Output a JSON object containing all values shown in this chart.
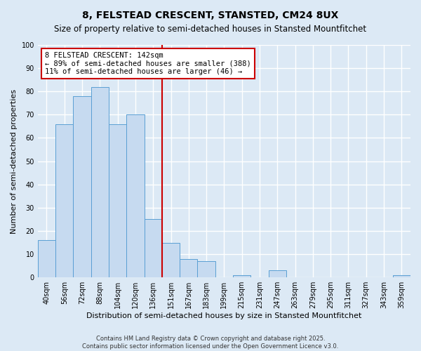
{
  "title": "8, FELSTEAD CRESCENT, STANSTED, CM24 8UX",
  "subtitle": "Size of property relative to semi-detached houses in Stansted Mountfitchet",
  "xlabel": "Distribution of semi-detached houses by size in Stansted Mountfitchet",
  "ylabel": "Number of semi-detached properties",
  "bin_labels": [
    "40sqm",
    "56sqm",
    "72sqm",
    "88sqm",
    "104sqm",
    "120sqm",
    "136sqm",
    "151sqm",
    "167sqm",
    "183sqm",
    "199sqm",
    "215sqm",
    "231sqm",
    "247sqm",
    "263sqm",
    "279sqm",
    "295sqm",
    "311sqm",
    "327sqm",
    "343sqm",
    "359sqm"
  ],
  "bar_values": [
    16,
    66,
    78,
    82,
    66,
    70,
    25,
    15,
    8,
    7,
    0,
    1,
    0,
    3,
    0,
    0,
    0,
    0,
    0,
    0,
    1
  ],
  "bar_color": "#c6daf0",
  "bar_edge_color": "#5a9fd4",
  "bg_color": "#dce9f5",
  "grid_color": "#ffffff",
  "vline_x_index": 6.5,
  "vline_color": "#cc0000",
  "annotation_title": "8 FELSTEAD CRESCENT: 142sqm",
  "annotation_line1": "← 89% of semi-detached houses are smaller (388)",
  "annotation_line2": "11% of semi-detached houses are larger (46) →",
  "annotation_box_color": "#ffffff",
  "annotation_box_edge": "#cc0000",
  "ylim": [
    0,
    100
  ],
  "yticks": [
    0,
    10,
    20,
    30,
    40,
    50,
    60,
    70,
    80,
    90,
    100
  ],
  "footer_line1": "Contains HM Land Registry data © Crown copyright and database right 2025.",
  "footer_line2": "Contains public sector information licensed under the Open Government Licence v3.0.",
  "title_fontsize": 10,
  "subtitle_fontsize": 8.5,
  "xlabel_fontsize": 8,
  "ylabel_fontsize": 8,
  "tick_fontsize": 7,
  "annotation_fontsize": 7.5,
  "footer_fontsize": 6
}
